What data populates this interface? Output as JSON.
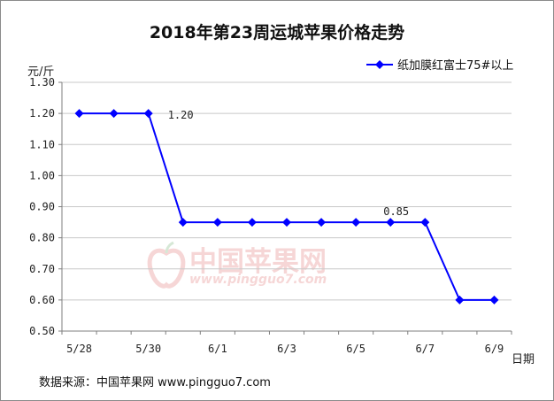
{
  "title": "2018年第23周运城苹果价格走势",
  "y_unit": "元/斤",
  "x_unit": "日期",
  "source": "数据来源：中国苹果网 www.pingguo7.com",
  "watermark": {
    "cn": "中国苹果网",
    "url": "www.pingguo7.com"
  },
  "colors": {
    "series": "#0000ff",
    "axis": "#7f7f7f"
  },
  "chart_data": {
    "type": "line",
    "title": "2018年第23周运城苹果价格走势",
    "xlabel": "日期",
    "ylabel": "元/斤",
    "ylim": [
      0.5,
      1.3
    ],
    "yticks": [
      "0.50",
      "0.60",
      "0.70",
      "0.80",
      "0.90",
      "1.00",
      "1.10",
      "1.20",
      "1.30"
    ],
    "xtick_labels": [
      "5/28",
      "5/30",
      "6/1",
      "6/3",
      "6/5",
      "6/7",
      "6/9"
    ],
    "x": [
      "5/28",
      "5/29",
      "5/30",
      "5/31",
      "6/1",
      "6/2",
      "6/3",
      "6/4",
      "6/5",
      "6/6",
      "6/7",
      "6/8",
      "6/9"
    ],
    "grid": "horizontal",
    "legend": "top-right",
    "series": [
      {
        "name": "纸加膜红富士75#以上",
        "values": [
          1.2,
          1.2,
          1.2,
          0.85,
          0.85,
          0.85,
          0.85,
          0.85,
          0.85,
          0.85,
          0.85,
          0.6,
          0.6
        ]
      }
    ],
    "annotations": [
      {
        "x": "5/30",
        "y": 1.2,
        "text": "1.20"
      },
      {
        "x": "6/6",
        "y": 0.85,
        "text": "0.85"
      }
    ]
  }
}
